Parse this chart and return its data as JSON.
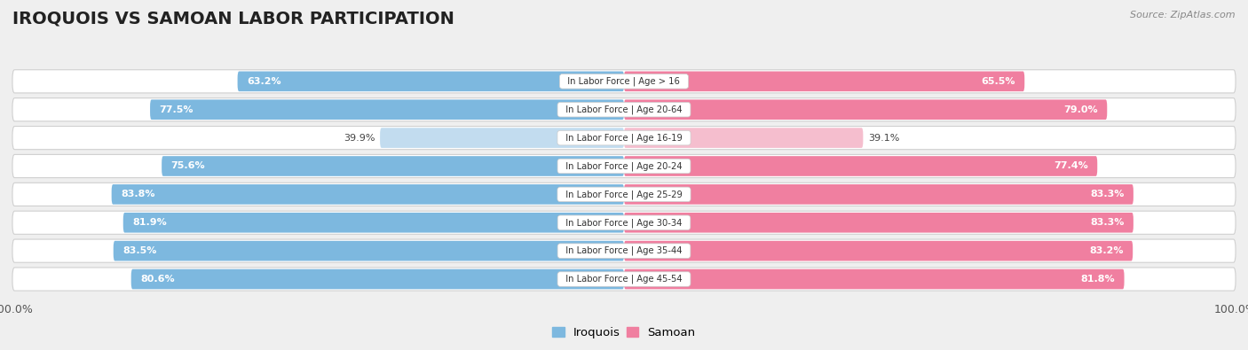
{
  "title": "IROQUOIS VS SAMOAN LABOR PARTICIPATION",
  "source": "Source: ZipAtlas.com",
  "categories": [
    "In Labor Force | Age > 16",
    "In Labor Force | Age 20-64",
    "In Labor Force | Age 16-19",
    "In Labor Force | Age 20-24",
    "In Labor Force | Age 25-29",
    "In Labor Force | Age 30-34",
    "In Labor Force | Age 35-44",
    "In Labor Force | Age 45-54"
  ],
  "iroquois_values": [
    63.2,
    77.5,
    39.9,
    75.6,
    83.8,
    81.9,
    83.5,
    80.6
  ],
  "samoan_values": [
    65.5,
    79.0,
    39.1,
    77.4,
    83.3,
    83.3,
    83.2,
    81.8
  ],
  "iroquois_color": "#7db8df",
  "iroquois_color_light": "#c2dcef",
  "samoan_color": "#f07fa0",
  "samoan_color_light": "#f5bece",
  "bg_color": "#efefef",
  "title_color": "#222222",
  "title_fontsize": 14,
  "max_val": 100.0,
  "legend_labels": [
    "Iroquois",
    "Samoan"
  ]
}
